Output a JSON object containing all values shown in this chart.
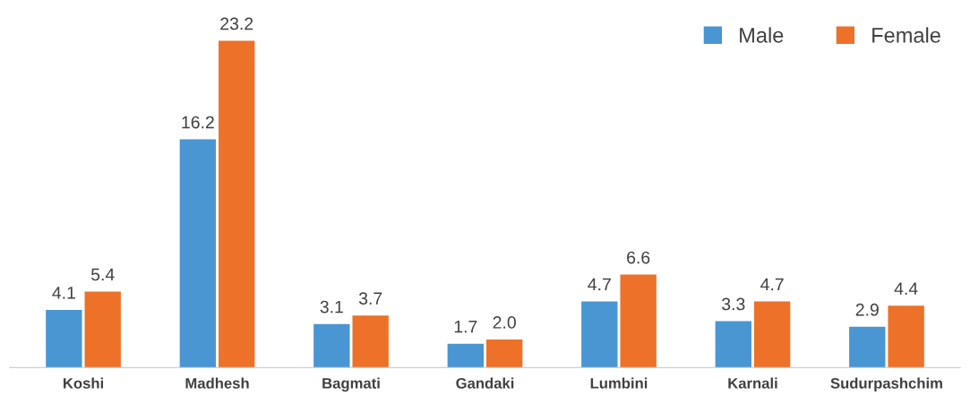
{
  "chart_data": {
    "type": "bar",
    "categories": [
      "Koshi",
      "Madhesh",
      "Bagmati",
      "Gandaki",
      "Lumbini",
      "Karnali",
      "Sudurpashchim"
    ],
    "series": [
      {
        "name": "Male",
        "color": "#4a96d2",
        "values": [
          4.1,
          16.2,
          3.1,
          1.7,
          4.7,
          3.3,
          2.9
        ],
        "value_labels": [
          "4.1",
          "16.2",
          "3.1",
          "1.7",
          "4.7",
          "3.3",
          "2.9"
        ]
      },
      {
        "name": "Female",
        "color": "#ed7128",
        "values": [
          5.4,
          23.2,
          3.7,
          2.0,
          6.6,
          4.7,
          4.4
        ],
        "value_labels": [
          "5.4",
          "23.2",
          "3.7",
          "2.0",
          "6.6",
          "4.7",
          "4.4"
        ]
      }
    ],
    "legend": "top right",
    "grid": false
  }
}
